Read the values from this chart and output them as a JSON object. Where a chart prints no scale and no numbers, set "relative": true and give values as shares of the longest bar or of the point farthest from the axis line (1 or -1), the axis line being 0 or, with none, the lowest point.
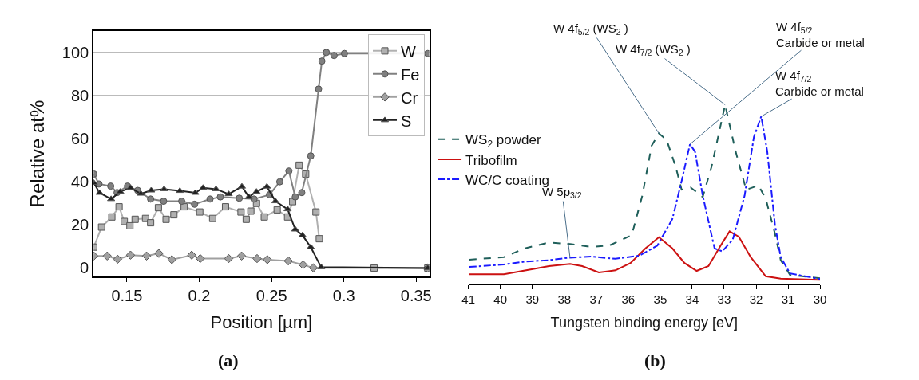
{
  "chart_data": [
    {
      "type": "line",
      "xlabel": "Position [µm]",
      "ylabel": "Relative at%",
      "xlim": [
        0.127,
        0.359
      ],
      "ylim": [
        -4,
        110
      ],
      "xticks": [
        0.15,
        0.2,
        0.25,
        0.3,
        0.35
      ],
      "yticks": [
        0,
        20,
        40,
        60,
        80,
        100
      ],
      "grid": "y",
      "legend": "top right",
      "annotations": [
        "(a)"
      ],
      "series": [
        {
          "name": "W",
          "color": "#b0b0b0",
          "marker": "square",
          "x": [
            0.1271,
            0.1325,
            0.1396,
            0.1446,
            0.1482,
            0.1521,
            0.1557,
            0.1629,
            0.1664,
            0.1718,
            0.1771,
            0.1825,
            0.1896,
            0.2004,
            0.2093,
            0.2182,
            0.2289,
            0.2325,
            0.2357,
            0.2396,
            0.245,
            0.2539,
            0.2611,
            0.2646,
            0.2691,
            0.2736,
            0.2807,
            0.283,
            0.2852,
            0.3209,
            0.358
          ],
          "values": [
            9.7,
            19,
            23.7,
            28.4,
            21.6,
            19.6,
            22.6,
            23,
            21,
            28,
            22.6,
            24.7,
            28.4,
            26,
            23,
            28.4,
            26,
            22.6,
            26.4,
            30,
            23.7,
            27,
            23.7,
            30.8,
            47.7,
            43.6,
            26,
            13.6,
            null,
            0,
            0
          ]
        },
        {
          "name": "Fe",
          "color": "#808080",
          "marker": "circle",
          "x": [
            0.1271,
            0.1307,
            0.1388,
            0.1432,
            0.1504,
            0.1575,
            0.1664,
            0.1754,
            0.1879,
            0.1968,
            0.2075,
            0.2146,
            0.2277,
            0.2379,
            0.2486,
            0.2557,
            0.262,
            0.2664,
            0.2709,
            0.2771,
            0.2825,
            0.2848,
            0.2879,
            0.2932,
            0.3004,
            0.358
          ],
          "values": [
            43.6,
            39,
            38,
            35,
            38,
            36,
            32,
            31,
            31,
            29.6,
            32,
            33,
            32.4,
            32,
            34,
            40,
            45,
            33,
            35,
            52,
            83,
            96,
            100,
            98.6,
            99.5,
            99.5
          ]
        },
        {
          "name": "Cr",
          "color": "#a0a0a0",
          "marker": "diamond",
          "x": [
            0.1271,
            0.1364,
            0.1436,
            0.1525,
            0.1636,
            0.1721,
            0.1811,
            0.1948,
            0.2007,
            0.2204,
            0.2293,
            0.24,
            0.2471,
            0.2616,
            0.2718,
            0.2789,
            0.358
          ],
          "values": [
            5.6,
            5.6,
            4.1,
            6,
            5.6,
            6.8,
            3.9,
            6,
            4.4,
            4.4,
            5.6,
            4.4,
            3.9,
            3.3,
            1.5,
            0.1,
            0
          ]
        },
        {
          "name": "S",
          "color": "#222222",
          "marker": "triangle",
          "x": [
            0.1271,
            0.1311,
            0.1391,
            0.1454,
            0.1525,
            0.1596,
            0.1668,
            0.1757,
            0.1866,
            0.1973,
            0.2027,
            0.2116,
            0.2204,
            0.2295,
            0.2343,
            0.2396,
            0.2468,
            0.2527,
            0.2611,
            0.2664,
            0.2714,
            0.2771,
            0.2843,
            0.358
          ],
          "values": [
            39.5,
            34.9,
            32,
            35.4,
            37.2,
            34.5,
            36,
            36.6,
            35.8,
            34.9,
            37.2,
            36.6,
            34.3,
            37.8,
            33,
            35.4,
            37.8,
            31,
            27.3,
            17.9,
            15.2,
            9.7,
            0.4,
            0
          ]
        }
      ]
    },
    {
      "type": "line",
      "relative": true,
      "xlabel": "Tungsten binding energy [eV]",
      "xlim": [
        41,
        30
      ],
      "xticks": [
        41,
        40,
        39,
        38,
        37,
        36,
        35,
        34,
        33,
        32,
        31,
        30
      ],
      "legend": "top left",
      "tick_labels": "x",
      "annotations": [
        {
          "text": "W 4f$_{5/2}$ (WS$_{2}$ )",
          "x": 35.04,
          "y": 0.84
        },
        {
          "text": "W 4f$_{7/2}$ (WS$_{2}$ )",
          "x": 32.97,
          "y": 1.0
        },
        {
          "text": "W 4f$_{5/2}$\nCarbide or metal",
          "x": 34.07,
          "y": 0.779
        },
        {
          "text": "W 4f$_{7/2}$\nCarbide or metal",
          "x": 31.84,
          "y": 0.935
        },
        {
          "text": "W 5p$_{3/2}$",
          "x": 37.82,
          "y": 0.144
        },
        "(b)"
      ],
      "series": [
        {
          "name": "WS$_{2}$ powder",
          "color": "#1f5f5a",
          "line_style": "dashed",
          "x": [
            40.97,
            39.89,
            39.23,
            38.48,
            37.82,
            37.16,
            36.59,
            35.89,
            35.56,
            35.27,
            35.04,
            34.8,
            34.52,
            34.33,
            34.05,
            33.67,
            33.39,
            32.97,
            32.64,
            32.31,
            31.93,
            31.7,
            31.41,
            31.23,
            30.94,
            30.0
          ],
          "values": [
            0.134,
            0.148,
            0.197,
            0.23,
            0.221,
            0.205,
            0.213,
            0.271,
            0.492,
            0.771,
            0.84,
            0.804,
            0.656,
            0.525,
            0.538,
            0.484,
            0.656,
            1.0,
            0.738,
            0.525,
            0.549,
            0.476,
            0.279,
            0.131,
            0.049,
            0.03
          ]
        },
        {
          "name": "Tribofilm",
          "color": "#cc1111",
          "line_style": "solid",
          "x": [
            40.97,
            39.89,
            38.95,
            38.48,
            37.82,
            37.44,
            36.92,
            36.4,
            35.93,
            35.46,
            35.04,
            34.62,
            34.24,
            33.86,
            33.49,
            33.11,
            32.83,
            32.54,
            32.17,
            31.7,
            31.23,
            30.0
          ],
          "values": [
            0.052,
            0.052,
            0.082,
            0.098,
            0.11,
            0.098,
            0.062,
            0.074,
            0.115,
            0.197,
            0.259,
            0.197,
            0.115,
            0.071,
            0.098,
            0.213,
            0.292,
            0.262,
            0.148,
            0.041,
            0.028,
            0.021
          ]
        },
        {
          "name": "WC/C coating",
          "color": "#1a1aff",
          "line_style": "dashdot",
          "x": [
            40.97,
            39.89,
            39.23,
            38.48,
            37.91,
            37.16,
            36.4,
            35.65,
            35.09,
            34.62,
            34.33,
            34.07,
            33.91,
            33.67,
            33.3,
            33.06,
            32.73,
            32.36,
            32.07,
            31.84,
            31.65,
            31.41,
            31.23,
            30.94,
            30.0
          ],
          "values": [
            0.093,
            0.107,
            0.123,
            0.131,
            0.144,
            0.151,
            0.139,
            0.156,
            0.213,
            0.361,
            0.574,
            0.779,
            0.738,
            0.492,
            0.197,
            0.18,
            0.246,
            0.492,
            0.82,
            0.935,
            0.738,
            0.328,
            0.148,
            0.057,
            0.025
          ]
        }
      ]
    }
  ]
}
